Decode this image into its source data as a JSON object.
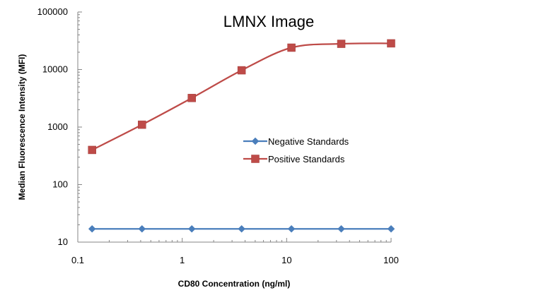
{
  "chart_data": {
    "type": "line",
    "title": "LMNX Image",
    "xlabel": "CD80 Concentration (ng/ml)",
    "ylabel": "Median Fluorescence Intensity (MFI)",
    "x_scale": "log",
    "y_scale": "log",
    "xlim": [
      0.1,
      100
    ],
    "ylim": [
      10,
      100000
    ],
    "x_ticks": [
      "0.1",
      "1",
      "10",
      "100"
    ],
    "y_ticks": [
      "10",
      "100",
      "1000",
      "10000",
      "100000"
    ],
    "legend_position": "center-right",
    "grid": false,
    "x": [
      0.137,
      0.412,
      1.235,
      3.704,
      11.11,
      33.33,
      100
    ],
    "series": [
      {
        "name": "Negative Standards",
        "color": "#4a7ebb",
        "marker": "diamond",
        "values": [
          17,
          17,
          17,
          17,
          17,
          17,
          17
        ]
      },
      {
        "name": "Positive Standards",
        "color": "#be4b48",
        "marker": "square",
        "values": [
          400,
          1100,
          3200,
          9700,
          24000,
          28000,
          28500
        ]
      }
    ]
  }
}
